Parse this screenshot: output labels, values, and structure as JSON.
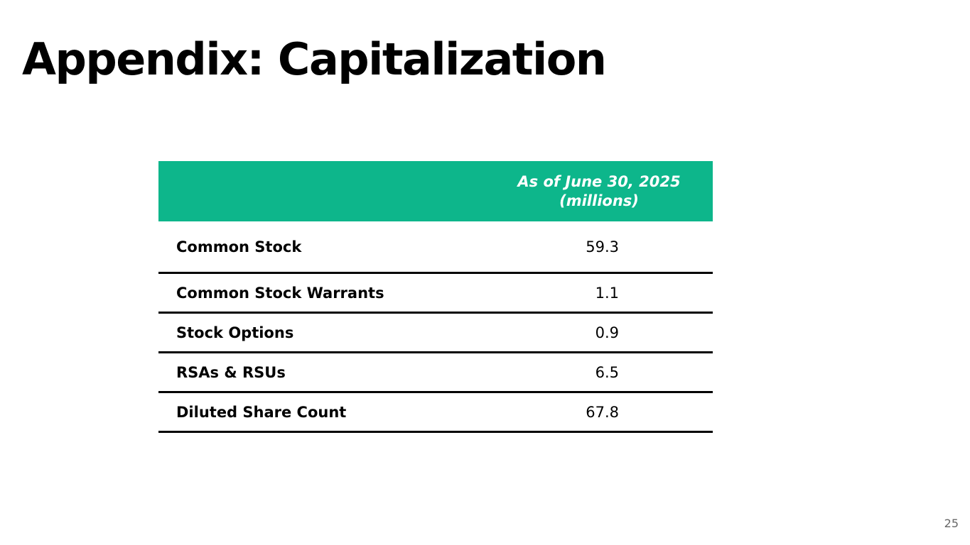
{
  "slide": {
    "title": "Appendix: Capitalization",
    "page_number": "25"
  },
  "colors": {
    "header_background": "#0db68b",
    "header_text": "#ffffff",
    "row_border": "#000000"
  },
  "table": {
    "header": {
      "line1": "As of June 30, 2025",
      "line2": "(millions)"
    },
    "rows": [
      {
        "label": "Common Stock",
        "value": "59.3"
      },
      {
        "label": "Common Stock Warrants",
        "value": "1.1"
      },
      {
        "label": "Stock Options",
        "value": "0.9"
      },
      {
        "label": "RSAs & RSUs",
        "value": "6.5"
      },
      {
        "label": "Diluted Share Count",
        "value": "67.8"
      }
    ]
  }
}
